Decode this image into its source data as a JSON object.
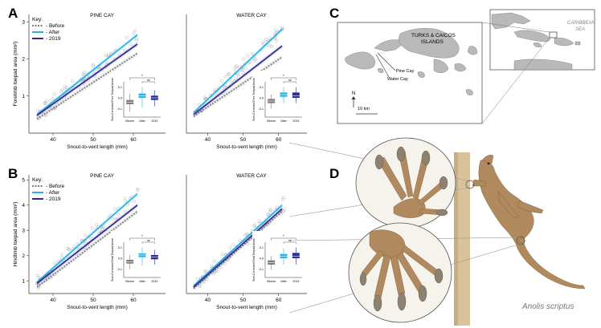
{
  "panel_letters": {
    "a": "A",
    "b": "B",
    "c": "C",
    "d": "D"
  },
  "legend": {
    "title": "Key:",
    "items": [
      "Before",
      "After",
      "2019"
    ]
  },
  "colors": {
    "before": "#7d7d7d",
    "after": "#27b3e8",
    "y2019": "#2a2d8f",
    "points": "#9a9a9a",
    "map_land": "#b9b9b9",
    "map_border": "#555555",
    "skin": "#b08a5e",
    "pole": "#d9c39a"
  },
  "inset_shared": {
    "categories": [
      "Before",
      "After",
      "2019"
    ],
    "star": "*",
    "ns": "ns"
  },
  "map": {
    "title_line1": "TURKS & CAICOS",
    "title_line2": "ISLANDS",
    "pine_cay": "Pine Cay",
    "water_cay": "Water Cay",
    "north": "N",
    "scale": "10 km",
    "sea_line1": "CARIBBEAN",
    "sea_line2": "SEA"
  },
  "photo": {
    "species": "Anolis scriptus"
  },
  "chart_data": [
    {
      "type": "scatter",
      "panel": "A",
      "title": "PINE CAY",
      "xlabel": "Snout-to-vent length (mm)",
      "ylabel": "Forelimb toepad area (mm²)",
      "xlim": [
        34,
        68
      ],
      "ylim": [
        0,
        3.2
      ],
      "xticks": [
        40,
        50,
        60
      ],
      "yticks": [
        1,
        2,
        3
      ],
      "series": [
        {
          "name": "Before",
          "line": [
            [
              36,
              0.38
            ],
            [
              61,
              2.15
            ]
          ]
        },
        {
          "name": "After",
          "line": [
            [
              36,
              0.5
            ],
            [
              61,
              2.65
            ]
          ]
        },
        {
          "name": "2019",
          "line": [
            [
              36,
              0.48
            ],
            [
              61,
              2.4
            ]
          ]
        }
      ],
      "inset": {
        "ylabel": "Size-Corrected Fore Toepad Areas",
        "yticks": [
          -0.1,
          0.0,
          0.1
        ],
        "ylim": [
          -0.18,
          0.15
        ],
        "boxes": [
          {
            "q1": -0.06,
            "med": -0.04,
            "q3": -0.02,
            "lo": -0.13,
            "hi": 0.04
          },
          {
            "q1": 0.0,
            "med": 0.02,
            "q3": 0.04,
            "lo": -0.09,
            "hi": 0.1
          },
          {
            "q1": -0.02,
            "med": 0.0,
            "q3": 0.02,
            "lo": -0.08,
            "hi": 0.07
          }
        ]
      }
    },
    {
      "type": "scatter",
      "panel": "A",
      "title": "WATER CAY",
      "xlabel": "Snout-to-vent length (mm)",
      "ylabel": "",
      "xlim": [
        34,
        68
      ],
      "ylim": [
        0,
        3.2
      ],
      "xticks": [
        40,
        50,
        60
      ],
      "yticks": [],
      "series": [
        {
          "name": "Before",
          "line": [
            [
              36,
              0.45
            ],
            [
              61,
              2.05
            ]
          ]
        },
        {
          "name": "After",
          "line": [
            [
              36,
              0.55
            ],
            [
              61,
              2.8
            ]
          ]
        },
        {
          "name": "2019",
          "line": [
            [
              36,
              0.5
            ],
            [
              61,
              2.35
            ]
          ]
        }
      ],
      "inset": {
        "ylabel": "Size-Corrected Fore Toepad Areas",
        "yticks": [
          -0.1,
          0.0,
          0.1
        ],
        "ylim": [
          -0.18,
          0.15
        ],
        "boxes": [
          {
            "q1": -0.05,
            "med": -0.03,
            "q3": -0.01,
            "lo": -0.1,
            "hi": 0.03
          },
          {
            "q1": 0.01,
            "med": 0.03,
            "q3": 0.05,
            "lo": -0.05,
            "hi": 0.1
          },
          {
            "q1": 0.0,
            "med": 0.02,
            "q3": 0.05,
            "lo": -0.05,
            "hi": 0.1
          }
        ]
      }
    },
    {
      "type": "scatter",
      "panel": "B",
      "title": "PINE CAY",
      "xlabel": "Snout-to-vent length (mm)",
      "ylabel": "Hindlimb toepad area (mm²)",
      "xlim": [
        34,
        68
      ],
      "ylim": [
        0.5,
        5.2
      ],
      "xticks": [
        40,
        50,
        60
      ],
      "yticks": [
        1,
        2,
        3,
        4,
        5
      ],
      "series": [
        {
          "name": "Before",
          "line": [
            [
              36,
              0.75
            ],
            [
              61,
              3.75
            ]
          ]
        },
        {
          "name": "After",
          "line": [
            [
              36,
              0.95
            ],
            [
              61,
              4.45
            ]
          ]
        },
        {
          "name": "2019",
          "line": [
            [
              36,
              0.9
            ],
            [
              61,
              4.0
            ]
          ]
        }
      ],
      "inset": {
        "ylabel": "Size-Corrected Hind Toepad Areas",
        "yticks": [
          -0.1,
          0.0,
          0.1
        ],
        "ylim": [
          -0.18,
          0.15
        ],
        "boxes": [
          {
            "q1": -0.05,
            "med": -0.035,
            "q3": -0.015,
            "lo": -0.1,
            "hi": 0.03
          },
          {
            "q1": 0.01,
            "med": 0.03,
            "q3": 0.045,
            "lo": -0.07,
            "hi": 0.1
          },
          {
            "q1": -0.01,
            "med": 0.01,
            "q3": 0.03,
            "lo": -0.06,
            "hi": 0.08
          }
        ]
      }
    },
    {
      "type": "scatter",
      "panel": "B",
      "title": "WATER CAY",
      "xlabel": "Snout-to-vent length (mm)",
      "ylabel": "",
      "xlim": [
        34,
        68
      ],
      "ylim": [
        0.5,
        5.2
      ],
      "xticks": [
        40,
        50,
        60
      ],
      "yticks": [],
      "series": [
        {
          "name": "Before",
          "line": [
            [
              36,
              0.7
            ],
            [
              61,
              3.75
            ]
          ]
        },
        {
          "name": "After",
          "line": [
            [
              36,
              0.8
            ],
            [
              61,
              4.0
            ]
          ]
        },
        {
          "name": "2019",
          "line": [
            [
              36,
              0.75
            ],
            [
              61,
              3.85
            ]
          ]
        }
      ],
      "inset": {
        "ylabel": "Size-Corrected Hind Toepad Areas",
        "yticks": [
          -0.1,
          0.0,
          0.1
        ],
        "ylim": [
          -0.18,
          0.15
        ],
        "boxes": [
          {
            "q1": -0.06,
            "med": -0.04,
            "q3": -0.02,
            "lo": -0.11,
            "hi": 0.02
          },
          {
            "q1": 0.0,
            "med": 0.02,
            "q3": 0.04,
            "lo": -0.06,
            "hi": 0.09
          },
          {
            "q1": 0.0,
            "med": 0.02,
            "q3": 0.05,
            "lo": -0.06,
            "hi": 0.1
          }
        ]
      }
    }
  ]
}
